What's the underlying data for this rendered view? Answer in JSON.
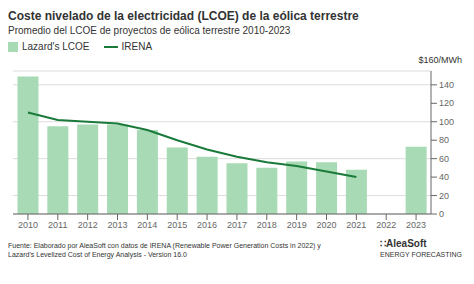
{
  "chart_data": {
    "type": "bar",
    "title": "Coste nivelado de la electricidad (LCOE) de la eólica terrestre",
    "subtitle": "Promedio del LCOE de proyectos de eólica terrestre 2010-2023",
    "ylabel": "$160/MWh",
    "source": "Fuente: Elaborado por AleaSoft con datos de IRENA (Renewable Power Generation Costs in 2022) y\nLazard’s Levelized Cost of Energy Analysis - Version 16.0",
    "annotations": [
      "∷AleaSoft",
      "ENERGY FORECASTING"
    ],
    "categories": [
      "2010",
      "2011",
      "2012",
      "2013",
      "2014",
      "2015",
      "2016",
      "2017",
      "2018",
      "2019",
      "2020",
      "2021",
      "2022",
      "2023"
    ],
    "series": [
      {
        "name": "Lazard's LCOE",
        "type": "bar",
        "color": "#a8dab5",
        "values": [
          149,
          95,
          97,
          97,
          91,
          72,
          62,
          55,
          50,
          57,
          56,
          48,
          null,
          73
        ]
      },
      {
        "name": "IRENA",
        "type": "line",
        "color": "#1a7a3a",
        "values": [
          110,
          102,
          100,
          98,
          91,
          80,
          70,
          62,
          56,
          52,
          46,
          40,
          null,
          null
        ]
      }
    ],
    "ylim": [
      0,
      155
    ],
    "yticks": [
      0,
      20,
      40,
      60,
      80,
      100,
      120,
      140
    ],
    "grid": true,
    "legend": "upper left"
  }
}
